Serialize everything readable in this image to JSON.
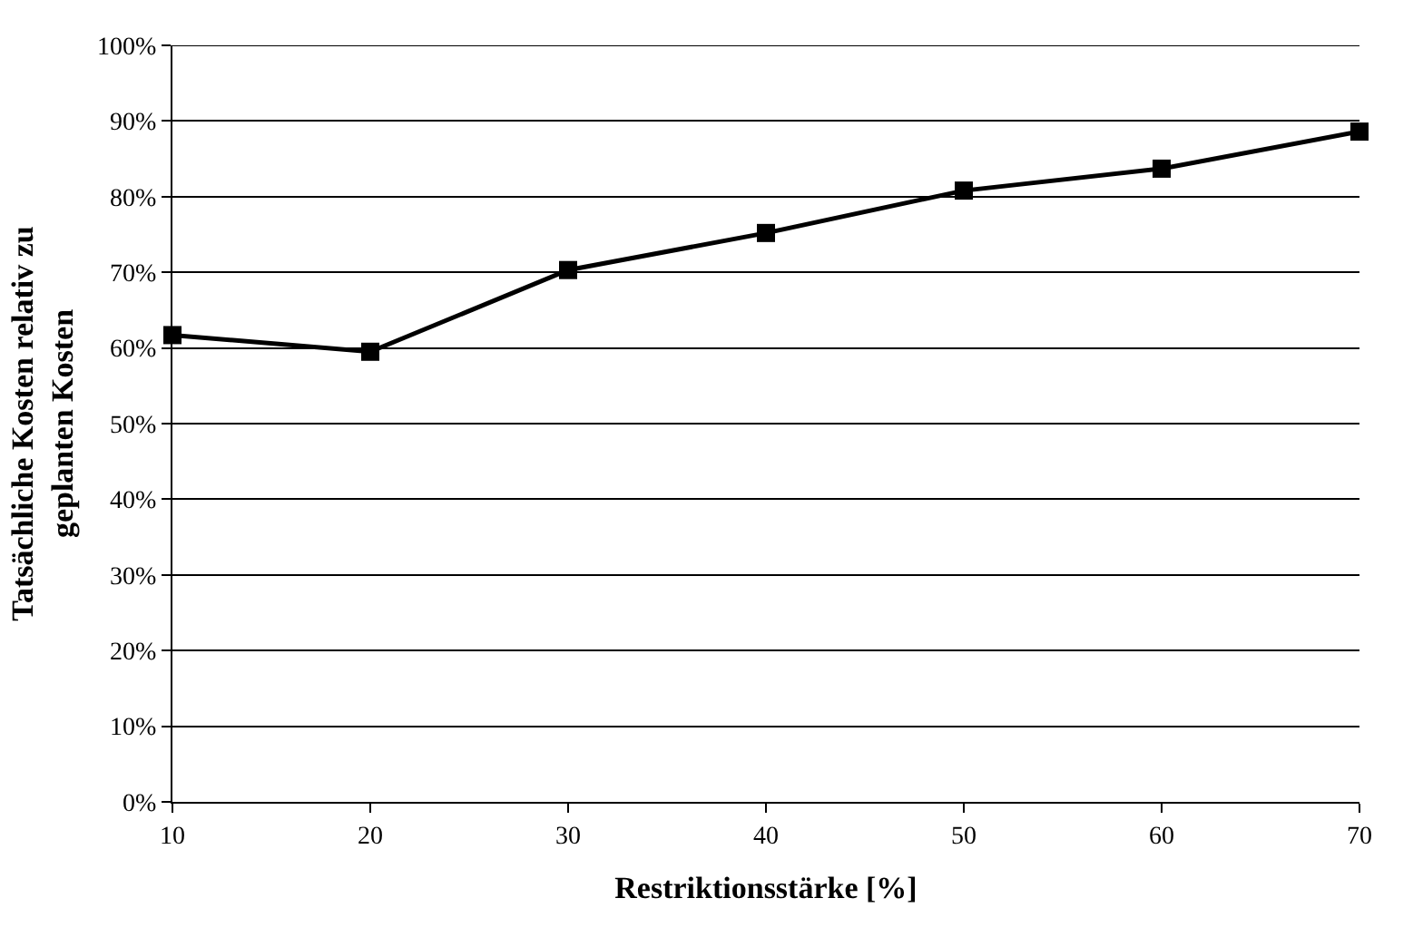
{
  "chart_data": {
    "type": "line",
    "xlabel": "Restriktionsstärke [%]",
    "ylabel": "Tatsächliche Kosten relativ zu geplanten Kosten",
    "x": [
      10,
      20,
      30,
      40,
      50,
      60,
      70
    ],
    "series": [
      {
        "color": "#000000",
        "values": [
          61.7,
          59.5,
          70.3,
          75.2,
          80.8,
          83.7,
          88.6
        ]
      }
    ],
    "xlim": [
      10,
      70
    ],
    "xticks": [
      10,
      20,
      30,
      40,
      50,
      60,
      70
    ],
    "ylim": [
      0,
      100
    ],
    "yticks": [
      {
        "value": 0,
        "label": "0%"
      },
      {
        "value": 10,
        "label": "10%"
      },
      {
        "value": 20,
        "label": "20%"
      },
      {
        "value": 30,
        "label": "30%"
      },
      {
        "value": 40,
        "label": "40%"
      },
      {
        "value": 50,
        "label": "50%"
      },
      {
        "value": 60,
        "label": "60%"
      },
      {
        "value": 70,
        "label": "70%"
      },
      {
        "value": 80,
        "label": "80%"
      },
      {
        "value": 90,
        "label": "90%"
      },
      {
        "value": 100,
        "label": "100%"
      }
    ],
    "grid": "y",
    "marker": "square",
    "line_style": "solid"
  }
}
